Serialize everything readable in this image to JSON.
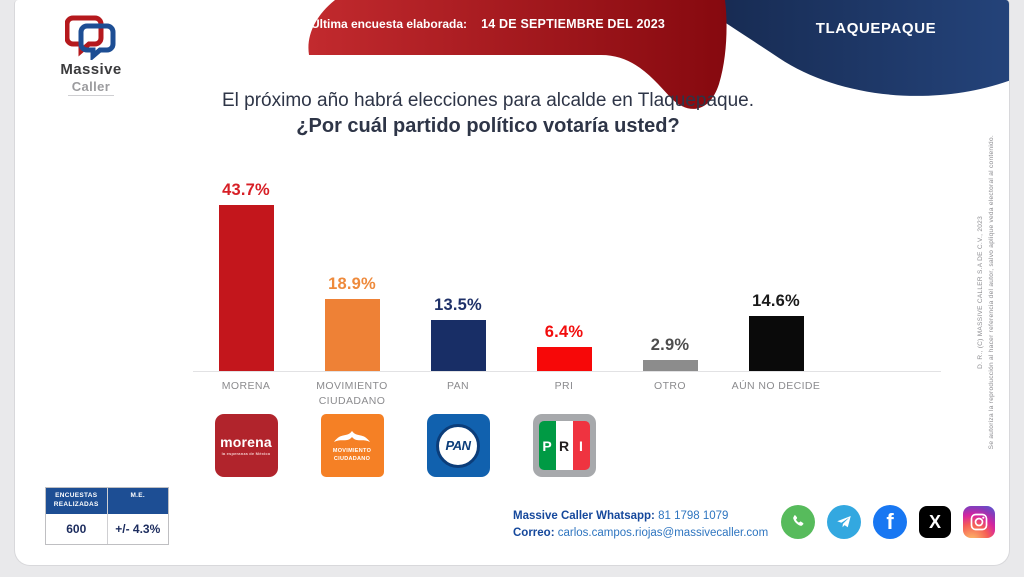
{
  "logo": {
    "line1": "Massive",
    "line2": "Caller"
  },
  "header": {
    "banner_label": "Última encuesta elaborada:",
    "banner_date": "14 DE SEPTIEMBRE DEL 2023",
    "region": "TLAQUEPAQUE",
    "banner_red_light": "#c22a2e",
    "banner_red_dark": "#86090f",
    "banner_blue": "#1c3666"
  },
  "title": {
    "line1": "El próximo año habrá elecciones para alcalde en Tlaquepaque.",
    "line2": "¿Por cuál partido político votaría usted?"
  },
  "chart_data": {
    "type": "bar",
    "title": "¿Por cuál partido político votaría usted? (Tlaquepaque)",
    "categories": [
      "MORENA",
      "MOVIMIENTO CIUDADANO",
      "PAN",
      "PRI",
      "OTRO",
      "AÚN NO DECIDE"
    ],
    "values": [
      43.7,
      18.9,
      13.5,
      6.4,
      2.9,
      14.6
    ],
    "labels": [
      "43.7%",
      "18.9%",
      "13.5%",
      "6.4%",
      "2.9%",
      "14.6%"
    ],
    "bar_colors": [
      "#c3161c",
      "#ee8136",
      "#182e66",
      "#f70808",
      "#8c8c8c",
      "#0a0a0a"
    ],
    "label_colors": [
      "#d71f26",
      "#ee8a3c",
      "#1f3168",
      "#f20d0d",
      "#4d4d4d",
      "#1a1a1a"
    ],
    "xlabel": "",
    "ylabel": "",
    "ylim": [
      0,
      50
    ],
    "grid": false,
    "legend": false
  },
  "party_logos": {
    "morena": {
      "word": "morena",
      "tagline": "la esperanza de México"
    },
    "mc": {
      "line1": "MOVIMIENTO",
      "line2": "CIUDADANO"
    },
    "pan": {
      "word": "PAN"
    },
    "pri": {
      "p": "P",
      "r": "R",
      "i": "I"
    }
  },
  "stats_table": {
    "header1a": "ENCUESTAS",
    "header1b": "REALIZADAS",
    "header2": "M.E.",
    "value1": "600",
    "value2": "+/- 4.3%"
  },
  "contact": {
    "whatsapp_label": "Massive Caller Whatsapp:",
    "whatsapp_value": " 81 1798 1079",
    "email_label": "Correo:",
    "email_value": " carlos.campos.riojas@massivecaller.com"
  },
  "social_icons": [
    "whatsapp-icon",
    "telegram-icon",
    "facebook-icon",
    "x-icon",
    "instagram-icon"
  ],
  "facebook_glyph": "f",
  "x_glyph": "X",
  "copyright": {
    "line1": "D. R., (C) MASSIVE CALLER S.A DE C.V., 2023",
    "line2": "Se autoriza la reproducción al hacer referencia del autor, salvo aplique veda electoral al contenido."
  }
}
